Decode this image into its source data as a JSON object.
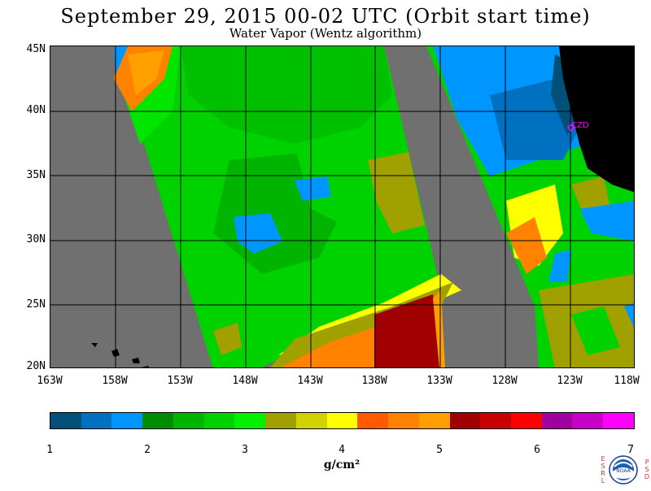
{
  "title": "September 29, 2015  00-02 UTC  (Orbit start time)",
  "subtitle": "Water Vapor (Wentz algorithm)",
  "map": {
    "lat_labels": [
      "45N",
      "40N",
      "35N",
      "30N",
      "25N",
      "20N"
    ],
    "lon_labels": [
      "163W",
      "158W",
      "153W",
      "148W",
      "143W",
      "138W",
      "133W",
      "128W",
      "123W",
      "118W"
    ],
    "station_label": "CZD",
    "land_color": "#000000",
    "no_data_color": "#707070",
    "grid_color": "#000000",
    "station_color": "#ff00ff"
  },
  "colorbar": {
    "colors": [
      "#00507a",
      "#0070c0",
      "#0096ff",
      "#008c00",
      "#00b400",
      "#00d200",
      "#00f000",
      "#a0a000",
      "#d2d200",
      "#ffff00",
      "#ff5a00",
      "#ff8200",
      "#ffa000",
      "#a00000",
      "#c80000",
      "#ff0000",
      "#a000a0",
      "#c800c8",
      "#ff00ff"
    ],
    "tick_labels": [
      "1",
      "2",
      "3",
      "4",
      "5",
      "6",
      "7"
    ],
    "units": "g/cm²"
  },
  "logo": {
    "left_letters": "ESRL",
    "right_letters": "PSD",
    "badge_text": "NOAA"
  }
}
